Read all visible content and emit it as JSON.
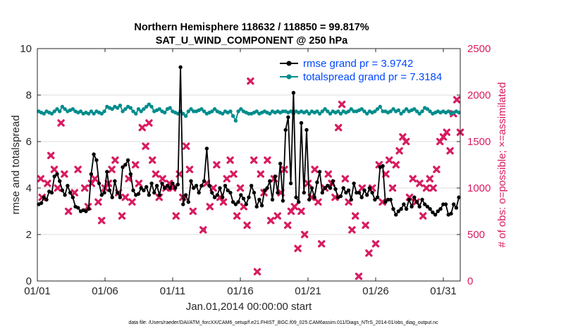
{
  "chart_data": {
    "type": "line",
    "title": "Northern Hemisphere 118632 / 118850 = 99.817%",
    "subtitle": "SAT_U_WIND_COMPONENT @ 250 hPa",
    "xlabel": "Jan.01,2014 00:00:00 start",
    "ylabel": "rmse and totalspread",
    "y2label": "# of obs: o=possible; ×=assimilated",
    "ylim": [
      0,
      10
    ],
    "y2lim": [
      0,
      2500
    ],
    "xlim": [
      0,
      31.25
    ],
    "xticks": [
      0,
      5,
      10,
      15,
      20,
      25,
      30
    ],
    "xtick_labels": [
      "01/01",
      "01/06",
      "01/11",
      "01/16",
      "01/21",
      "01/26",
      "01/31"
    ],
    "yticks": [
      "0",
      "2",
      "4",
      "6",
      "8",
      "10"
    ],
    "y2ticks": [
      "0",
      "500",
      "1000",
      "1500",
      "2000",
      "2500"
    ],
    "legend_position": "top-right",
    "footnote": "data file: /Users/raeder/DAI/ATM_forcXX/CAM6_setup/f.e21.FHIST_BGC.f09_025.CAM6assim.011/Diags_NTrS_2014-01/obs_diag_output.nc",
    "colors": {
      "rmse": "#000000",
      "spread": "#008c8c",
      "obs": "#d81b60",
      "legend_text": "#0047ff"
    },
    "series": [
      {
        "name": "rmse grand pr = 3.9742",
        "axis": "left",
        "values": [
          3.3,
          3.35,
          3.6,
          3.5,
          3.85,
          3.8,
          4.5,
          4.6,
          4.3,
          3.9,
          3.7,
          4.1,
          3.8,
          3.6,
          3.2,
          3.15,
          3.0,
          3.05,
          3.0,
          3.1,
          4.6,
          5.45,
          5.2,
          4.2,
          3.7,
          3.8,
          4.7,
          3.9,
          3.6,
          4.3,
          3.8,
          3.6,
          4.9,
          5.0,
          5.2,
          4.6,
          3.9,
          3.7,
          3.75,
          4.0,
          3.9,
          4.05,
          3.7,
          4.2,
          3.8,
          4.1,
          3.7,
          4.2,
          4.0,
          4.1,
          4.0,
          4.2,
          4.0,
          4.15,
          9.2,
          3.3,
          3.7,
          3.4,
          4.3,
          4.0,
          4.1,
          3.8,
          4.1,
          4.3,
          5.7,
          4.1,
          3.8,
          3.6,
          3.7,
          4.0,
          3.6,
          4.1,
          3.9,
          3.8,
          3.4,
          3.3,
          3.4,
          3.7,
          3.55,
          3.3,
          3.6,
          4.1,
          3.8,
          3.2,
          3.5,
          3.25,
          3.9,
          4.0,
          4.3,
          3.5,
          4.5,
          3.8,
          5.05,
          3.45,
          6.5,
          7.05,
          4.2,
          8.1,
          3.6,
          3.4,
          6.8,
          3.8,
          6.5,
          3.5,
          4.0,
          3.6,
          4.25,
          4.7,
          3.8,
          4.0,
          4.1,
          4.0,
          4.3,
          3.95,
          3.6,
          3.65,
          4.0,
          3.8,
          3.9,
          3.5,
          4.2,
          3.8,
          3.8,
          3.6,
          3.9,
          3.7,
          4.0,
          3.8,
          3.5,
          3.6,
          4.9,
          4.95,
          3.4,
          3.5,
          3.5,
          3.1,
          2.85,
          3.0,
          3.1,
          3.3,
          3.1,
          3.5,
          3.2,
          3.6,
          3.4,
          3.2,
          3.5,
          3.3,
          3.2,
          3.1,
          2.95,
          2.85,
          3.0,
          3.1,
          3.3,
          3.3,
          2.85,
          2.9,
          3.3,
          3.15,
          3.6
        ]
      },
      {
        "name": "totalspread grand pr = 7.3184",
        "axis": "left",
        "values": [
          7.3,
          7.25,
          7.2,
          7.3,
          7.25,
          7.2,
          7.3,
          7.4,
          7.3,
          7.5,
          7.4,
          7.3,
          7.35,
          7.4,
          7.3,
          7.25,
          7.3,
          7.2,
          7.25,
          7.2,
          7.3,
          7.2,
          7.3,
          7.25,
          7.2,
          7.3,
          7.5,
          7.45,
          7.4,
          7.5,
          7.45,
          7.55,
          7.3,
          7.4,
          7.5,
          7.45,
          7.3,
          7.2,
          7.4,
          7.3,
          7.4,
          7.5,
          7.6,
          7.5,
          7.3,
          7.35,
          7.4,
          7.3,
          7.25,
          7.4,
          7.45,
          7.3,
          7.25,
          7.2,
          7.3,
          7.2,
          7.1,
          7.3,
          7.4,
          7.3,
          7.3,
          7.35,
          7.4,
          7.3,
          7.2,
          7.25,
          7.3,
          7.4,
          7.3,
          7.25,
          7.2,
          7.3,
          7.25,
          7.3,
          7.1,
          6.9,
          7.3,
          7.4,
          7.3,
          7.25,
          7.2,
          7.2,
          7.25,
          7.3,
          7.2,
          7.25,
          7.3,
          7.25,
          7.2,
          7.3,
          7.25,
          7.3,
          7.25,
          7.3,
          7.3,
          7.25,
          7.3,
          7.2,
          7.3,
          7.25,
          7.3,
          7.25,
          7.3,
          7.2,
          7.3,
          7.25,
          7.3,
          7.2,
          7.3,
          7.4,
          7.3,
          7.2,
          7.3,
          7.25,
          7.3,
          7.2,
          7.3,
          7.25,
          7.3,
          7.4,
          7.3,
          7.3,
          7.35,
          7.4,
          7.3,
          7.2,
          7.3,
          7.25,
          7.3,
          7.4,
          7.5,
          7.3,
          7.3,
          7.25,
          7.3,
          7.4,
          7.3,
          7.35,
          7.2,
          7.3,
          7.4,
          7.3,
          7.35,
          7.4,
          7.3,
          7.2,
          7.3,
          7.45,
          7.4,
          7.3,
          7.2,
          7.25,
          7.3,
          7.25,
          7.3,
          7.25,
          7.3,
          7.2,
          7.25,
          7.3,
          7.25
        ]
      },
      {
        "name": "assimilated obs count",
        "axis": "right",
        "type": "scatter",
        "x": [
          0.25,
          0.35,
          0.75,
          1.0,
          1.25,
          1.5,
          1.75,
          2.0,
          2.3,
          2.75,
          3.0,
          3.5,
          3.75,
          4.0,
          4.25,
          4.5,
          4.75,
          5.0,
          5.25,
          5.5,
          5.75,
          6.0,
          6.25,
          6.5,
          6.75,
          7.0,
          7.25,
          7.5,
          7.75,
          8.0,
          8.25,
          8.5,
          8.75,
          9.0,
          9.25,
          9.5,
          9.75,
          10.0,
          10.25,
          10.5,
          10.75,
          11.0,
          11.25,
          11.5,
          12.25,
          12.5,
          12.75,
          13.0,
          13.25,
          13.5,
          13.75,
          14.0,
          14.25,
          14.5,
          14.75,
          15.0,
          15.25,
          15.5,
          15.75,
          16.0,
          16.25,
          16.5,
          16.75,
          17.0,
          17.25,
          17.5,
          17.75,
          18.0,
          18.25,
          18.5,
          18.75,
          19.0,
          19.25,
          19.5,
          19.75,
          20.0,
          20.25,
          20.5,
          20.75,
          21.0,
          21.25,
          21.5,
          21.75,
          22.0,
          22.25,
          22.5,
          22.75,
          23.0,
          23.25,
          23.5,
          23.75,
          24.0,
          24.25,
          24.5,
          24.75,
          25.0,
          25.25,
          25.5,
          25.75,
          26.0,
          26.25,
          26.5,
          26.75,
          27.0,
          27.25,
          27.5,
          27.75,
          28.0,
          28.25,
          28.5,
          28.75,
          29.0,
          29.25,
          29.5,
          29.75,
          30.0,
          30.25,
          30.5,
          30.75,
          31.0,
          31.25
        ],
        "values": [
          1100,
          900,
          1050,
          1350,
          1200,
          1000,
          1700,
          1150,
          750,
          950,
          1200,
          1000,
          800,
          1050,
          1100,
          850,
          650,
          1000,
          1050,
          1200,
          1300,
          950,
          700,
          900,
          1100,
          850,
          1250,
          1050,
          1650,
          1450,
          1700,
          1300,
          1150,
          900,
          1100,
          1000,
          1050,
          1000,
          700,
          1150,
          900,
          1450,
          1200,
          750,
          550,
          1050,
          800,
          1000,
          1250,
          900,
          850,
          1100,
          1300,
          1150,
          700,
          1000,
          800,
          600,
          2150,
          1300,
          100,
          1150,
          950,
          1300,
          650,
          1100,
          700,
          950,
          1200,
          600,
          750,
          800,
          350,
          750,
          500,
          1050,
          900,
          1200,
          850,
          400,
          1000,
          1150,
          1050,
          900,
          1650,
          1900,
          1100,
          850,
          550,
          700,
          50,
          1000,
          600,
          300,
          1000,
          400,
          1250,
          850,
          1150,
          1300,
          1000,
          1250,
          1400,
          1550,
          1500,
          900,
          1100,
          850,
          1050,
          700,
          1000,
          1100,
          1000,
          1200,
          1500,
          1550,
          1600,
          1400,
          1800,
          1950,
          1600
        ]
      }
    ],
    "possible_marker": {
      "x": 12.3,
      "y2": 550,
      "label": "o"
    }
  }
}
